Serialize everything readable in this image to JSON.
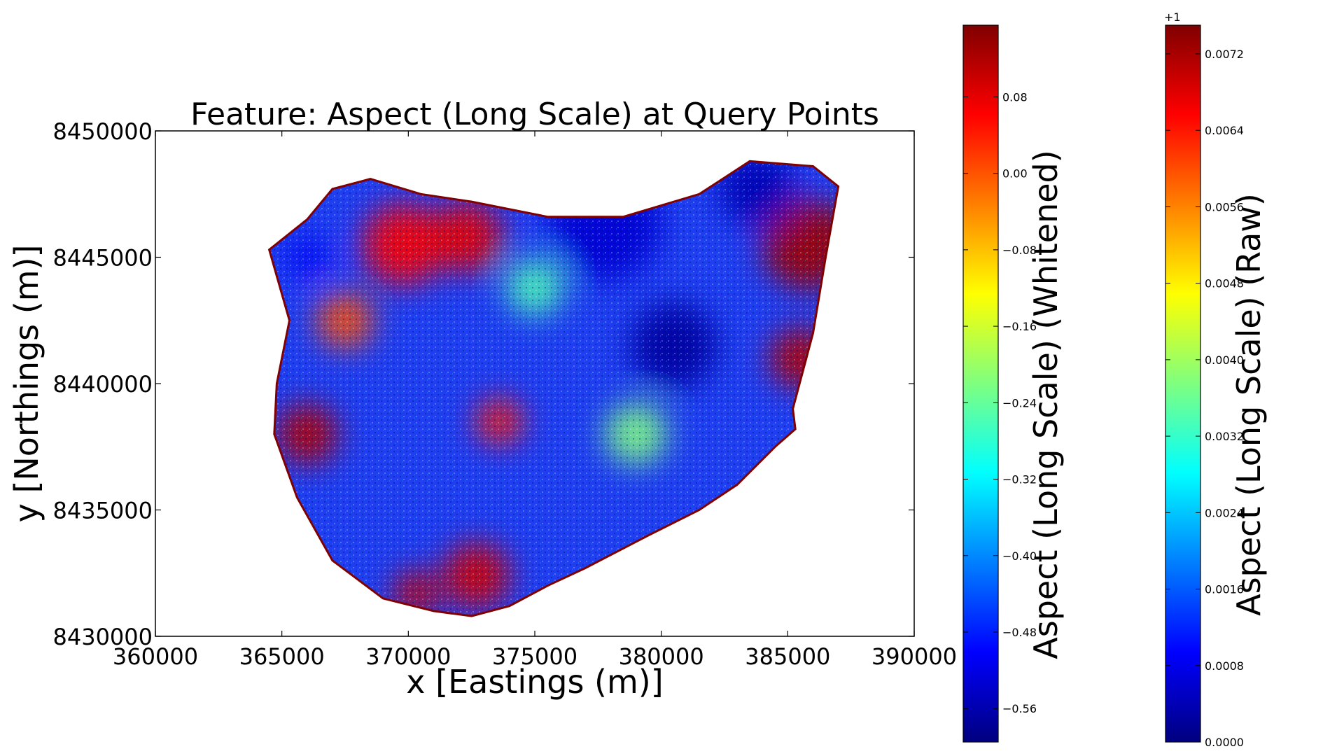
{
  "chart_data": {
    "type": "scatter",
    "title": "Feature: Aspect (Long Scale) at Query Points",
    "xlabel": "x [Eastings (m)]",
    "ylabel": "y [Northings (m)]",
    "xlim": [
      360000,
      390000
    ],
    "ylim": [
      8430000,
      8450000
    ],
    "x_ticks": [
      360000,
      365000,
      370000,
      375000,
      380000,
      385000,
      390000
    ],
    "x_tick_labels": [
      "360000",
      "365000",
      "370000",
      "375000",
      "380000",
      "385000",
      "390000"
    ],
    "y_ticks": [
      8430000,
      8435000,
      8440000,
      8445000,
      8450000
    ],
    "y_tick_labels": [
      "8430000",
      "8435000",
      "8440000",
      "8445000",
      "8450000"
    ],
    "grid": false,
    "colormap": "jet",
    "colormap_stops": [
      "#00007f",
      "#0000ff",
      "#007fff",
      "#00ffff",
      "#7fff7f",
      "#ffff00",
      "#ff7f00",
      "#ff0000",
      "#7f0000"
    ],
    "region_boundary": [
      [
        364500,
        8445300
      ],
      [
        366000,
        8446500
      ],
      [
        367000,
        8447700
      ],
      [
        368500,
        8448100
      ],
      [
        370500,
        8447500
      ],
      [
        372500,
        8447200
      ],
      [
        375500,
        8446600
      ],
      [
        378500,
        8446600
      ],
      [
        381500,
        8447500
      ],
      [
        383500,
        8448800
      ],
      [
        386000,
        8448600
      ],
      [
        387000,
        8447800
      ],
      [
        386500,
        8445000
      ],
      [
        386000,
        8442000
      ],
      [
        385200,
        8439000
      ],
      [
        385300,
        8438200
      ],
      [
        384500,
        8437500
      ],
      [
        383000,
        8436000
      ],
      [
        381500,
        8435000
      ],
      [
        379500,
        8434000
      ],
      [
        377000,
        8432700
      ],
      [
        375500,
        8432000
      ],
      [
        374000,
        8431200
      ],
      [
        372500,
        8430800
      ],
      [
        371000,
        8431000
      ],
      [
        369000,
        8431500
      ],
      [
        367000,
        8433000
      ],
      [
        365600,
        8435500
      ],
      [
        364700,
        8438000
      ],
      [
        364800,
        8440000
      ],
      [
        365300,
        8442500
      ],
      [
        364500,
        8445300
      ]
    ],
    "data_blobs": [
      {
        "x": 366000,
        "y": 8438000,
        "radius": 1200,
        "value": 0.95
      },
      {
        "x": 385800,
        "y": 8445500,
        "radius": 1800,
        "value": 0.97
      },
      {
        "x": 385500,
        "y": 8441000,
        "radius": 1200,
        "value": 0.95
      },
      {
        "x": 369800,
        "y": 8445500,
        "radius": 1600,
        "value": 0.88
      },
      {
        "x": 372300,
        "y": 8445800,
        "radius": 1400,
        "value": 0.9
      },
      {
        "x": 372700,
        "y": 8432400,
        "radius": 1300,
        "value": 0.92
      },
      {
        "x": 370300,
        "y": 8431700,
        "radius": 900,
        "value": 0.93
      },
      {
        "x": 373600,
        "y": 8438500,
        "radius": 900,
        "value": 0.85
      },
      {
        "x": 367500,
        "y": 8442500,
        "radius": 1100,
        "value": 0.8
      },
      {
        "x": 380500,
        "y": 8441500,
        "radius": 1700,
        "value": 0.03
      },
      {
        "x": 377800,
        "y": 8446300,
        "radius": 2200,
        "value": 0.08
      },
      {
        "x": 383800,
        "y": 8447700,
        "radius": 1500,
        "value": 0.05
      },
      {
        "x": 375000,
        "y": 8443800,
        "radius": 1100,
        "value": 0.45
      },
      {
        "x": 379000,
        "y": 8438000,
        "radius": 1200,
        "value": 0.5
      },
      {
        "x": 366000,
        "y": 8445000,
        "radius": 800,
        "value": 0.12
      }
    ],
    "colorbars": [
      {
        "label": "Aspect (Long Scale) (Whitened)",
        "range": [
          -0.595,
          0.155
        ],
        "ticks": [
          -0.56,
          -0.48,
          -0.4,
          -0.32,
          -0.24,
          -0.16,
          -0.08,
          0.0,
          0.08
        ],
        "tick_labels": [
          "−0.56",
          "−0.48",
          "−0.40",
          "−0.32",
          "−0.24",
          "−0.16",
          "−0.08",
          "0.00",
          "0.08"
        ],
        "offset_text": ""
      },
      {
        "label": "Aspect (Long Scale) (Raw)",
        "range": [
          0.0,
          0.0075
        ],
        "ticks": [
          0.0,
          0.0008,
          0.0016,
          0.0024,
          0.0032,
          0.004,
          0.0048,
          0.0056,
          0.0064,
          0.0072
        ],
        "tick_labels": [
          "0.0000",
          "0.0008",
          "0.0016",
          "0.0024",
          "0.0032",
          "0.0040",
          "0.0048",
          "0.0056",
          "0.0064",
          "0.0072"
        ],
        "offset_text": "+1"
      }
    ]
  }
}
